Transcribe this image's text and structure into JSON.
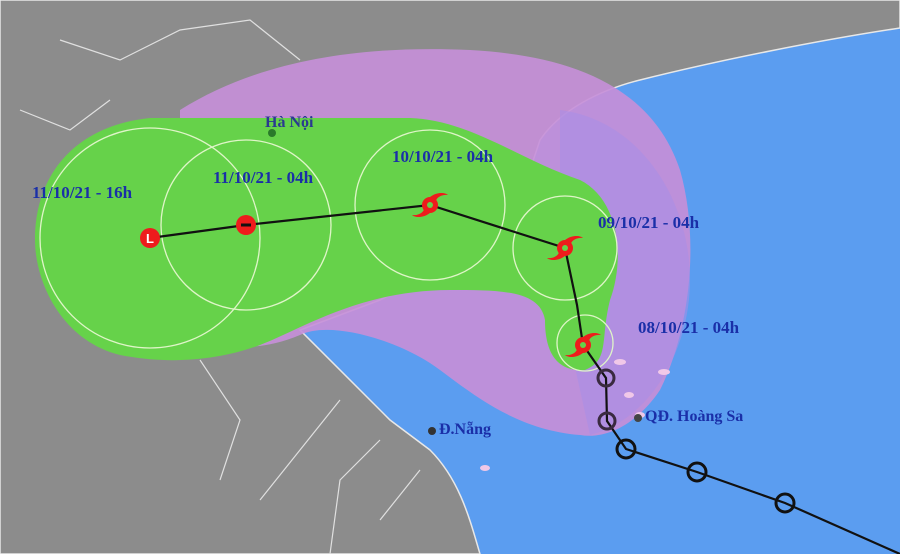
{
  "map": {
    "colors": {
      "land": "#8c8c8c",
      "sea": "#5b9df0",
      "risk_zone": "#c58fd8",
      "forecast_cone": "#66d24a",
      "track": "#111111",
      "storm_symbol": "#ee1c1c"
    },
    "places": {
      "hanoi": "Hà Nội",
      "danang": "Đ.Nẵng",
      "hoangsa": "QĐ. Hoàng Sa"
    },
    "forecast_labels": [
      "11/10/21 - 16h",
      "11/10/21 - 04h",
      "10/10/21 - 04h",
      "09/10/21 - 04h",
      "08/10/21 - 04h"
    ],
    "symbols": {
      "past": "past-position-circle",
      "forecast": "typhoon-icon",
      "low": "low-pressure-L"
    },
    "low_letter": "L"
  }
}
